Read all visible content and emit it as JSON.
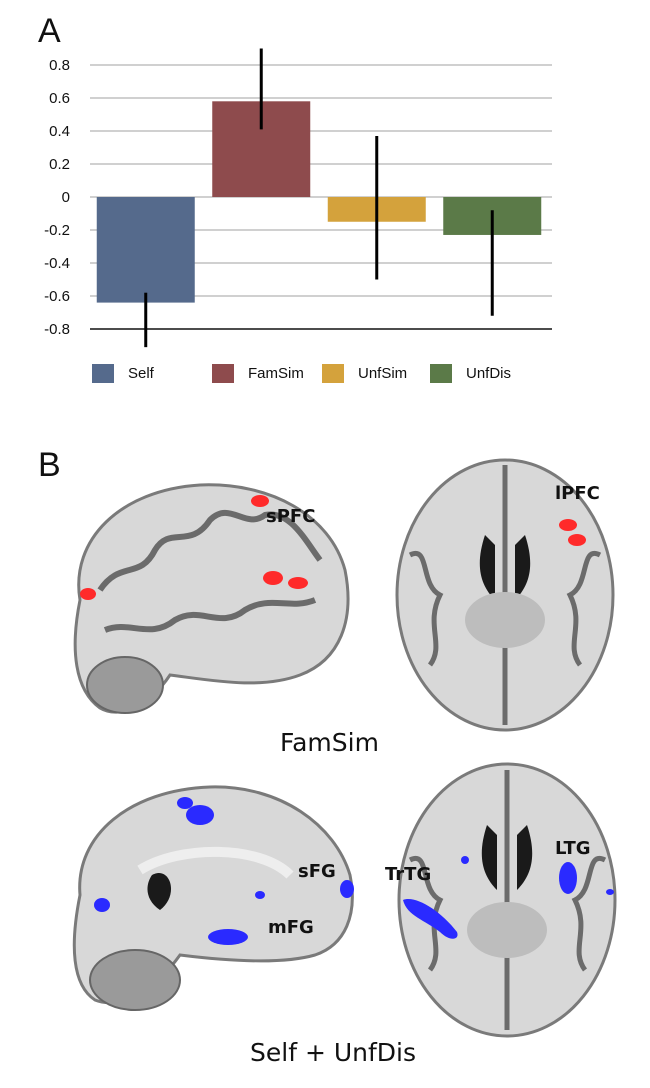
{
  "panel_a_label": "A",
  "panel_b_label": "B",
  "chart_data": {
    "type": "bar",
    "categories": [
      "Self",
      "FamSim",
      "UnfSim",
      "UnfDis"
    ],
    "values": [
      -0.64,
      0.58,
      -0.15,
      -0.23
    ],
    "error_low": [
      -0.91,
      0.41,
      -0.5,
      -0.72
    ],
    "error_high": [
      -0.58,
      0.9,
      0.37,
      -0.08
    ],
    "colors": [
      "#556a8c",
      "#8e4b4d",
      "#d4a23c",
      "#5b7a48"
    ],
    "ylim": [
      -0.8,
      0.8
    ],
    "yticks": [
      "0.8",
      "0.6",
      "0.4",
      "0.2",
      "0",
      "-0.2",
      "-0.4",
      "-0.6",
      "-0.8"
    ],
    "ytick_values": [
      0.8,
      0.6,
      0.4,
      0.2,
      0,
      -0.2,
      -0.4,
      -0.6,
      -0.8
    ],
    "grid": true,
    "legend_position": "bottom",
    "title": "",
    "xlabel": "",
    "ylabel": ""
  },
  "panel_b": {
    "top_caption": "FamSim",
    "bottom_caption": "Self + UnfDis",
    "top_left_labels": [
      "sPFC"
    ],
    "top_right_labels": [
      "lPFC"
    ],
    "bottom_left_labels": [
      "sFG",
      "mFG"
    ],
    "bottom_right_labels": [
      "TrTG",
      "LTG"
    ],
    "activation_colors": {
      "famsim": "#ff2a2a",
      "self_unfdis": "#2a2aff"
    }
  }
}
